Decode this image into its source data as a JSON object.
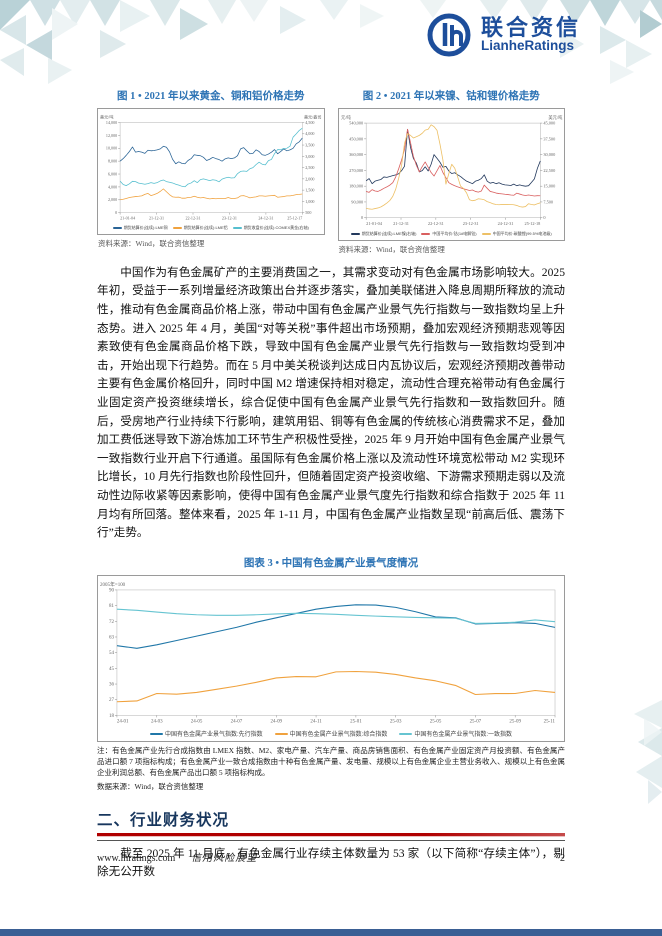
{
  "header": {
    "logo_cn": "联合资信",
    "logo_en": "LianheRatings"
  },
  "figures": {
    "fig1": {
      "title": "图 1 • 2021 年以来黄金、铜和铝价格走势",
      "source": "资料来源：Wind，联合资信整理"
    },
    "fig2": {
      "title": "图 2 • 2021 年以来镍、钴和锂价格走势",
      "source": "资料来源：Wind，联合资信整理"
    },
    "fig3": {
      "title": "图表 3 • 中国有色金属产业景气度情况",
      "note_lines": [
        "注：有色金属产业先行合成指数由 LMEX 指数、M2、家电产量、汽车产量、商品房销售面积、有色金属产业固定资产月投资额、有色金属产品进口额 7 项指标构成；有色金属产业一致合成指数由十种有色金属产量、发电量、规模以上有色金属企业主营业务收入、规模以上有色金属企业利润总额、有色金属产品出口额 5 项指标构成。",
        "数据来源：Wind，联合资信整理"
      ]
    }
  },
  "body": {
    "para1": "中国作为有色金属矿产的主要消费国之一，其需求变动对有色金属市场影响较大。2025 年初，受益于一系列增量经济政策出台并逐步落实，叠加美联储进入降息周期所释放的流动性，推动有色金属商品价格上涨，带动中国有色金属产业景气先行指数与一致指数均呈上升态势。进入 2025 年 4 月，美国“对等关税”事件超出市场预期，叠加宏观经济预期悲观等因素致使有色金属商品价格下跌，导致中国有色金属产业景气先行指数与一致指数均受到冲击，开始出现下行趋势。而在 5 月中美关税谈判达成日内瓦协议后，宏观经济预期改善带动主要有色金属价格回升，同时中国 M2 增速保持相对稳定，流动性合理充裕带动有色金属行业固定资产投资继续增长，综合促使中国有色金属产业景气先行指数和一致指数回升。随后，受房地产行业持续下行影响，建筑用铝、铜等有色金属的传统核心消费需求不足，叠加加工费低迷导致下游冶炼加工环节生产积极性受挫，2025 年 9 月开始中国有色金属产业景气一致指数行业开启下行通道。虽国际有色金属价格上涨以及流动性环境宽松带动 M2 实现环比增长，10 月先行指数也阶段性回升，但随着固定资产投资收缩、下游需求预期走弱以及流动性边际收紧等因素影响，使得中国有色金属产业景气度先行指数和综合指数于 2025 年 11 月均有所回落。整体来看，2025 年 1-11 月，中国有色金属产业指数呈现“前高后低、震荡下行”走势。",
    "section2_heading": "二、行业财务状况",
    "para2": "截至 2025 年 11 月底，有色金属行业存续主体数量为 53 家（以下简称“存续主体”），剔除无公开数"
  },
  "footer": {
    "site": "www.lhratings.com",
    "doc_title": "信用风险展望",
    "page": "2"
  },
  "colors": {
    "title_blue": "#2e74b5",
    "heading_blue": "#17365d",
    "logo_blue": "#1d4e9b",
    "rule_red": "#b00000",
    "bottom_bar_blue": "#3a5f94",
    "copper_line": "#2a6496",
    "aluminum_line": "#f0a23e",
    "gold_line": "#56bfcf",
    "nickel_line": "#23395d",
    "cobalt_line": "#d95f5f",
    "lithium_line": "#edc066",
    "leading_line": "#2077a8",
    "composite_line": "#f0a23e",
    "coincident_line": "#66c4d1"
  },
  "chart_data": [
    {
      "id": "chart1",
      "type": "line",
      "title": "图 1 • 2021 年以来黄金、铜和铝价格走势",
      "unit_left": "美元/吨",
      "unit_right": "美元/盎司",
      "grid": false,
      "legend_position": "bottom",
      "x_ticks": [
        "21-01-04",
        "21-12-31",
        "22-12-31",
        "23-12-31",
        "24-12-31",
        "25-12-17"
      ],
      "left_axis": {
        "min": 0,
        "max": 14000,
        "ticks": [
          "0",
          "2,000",
          "4,000",
          "6,000",
          "8,000",
          "10,000",
          "12,000",
          "14,000"
        ]
      },
      "right_axis": {
        "min": 500,
        "max": 4500,
        "ticks": [
          "500",
          "1,000",
          "1,500",
          "2,000",
          "2,500",
          "3,000",
          "3,500",
          "4,000",
          "4,500"
        ]
      },
      "series": [
        {
          "name": "期货结算价(连续):LME铜",
          "axis": "left",
          "color": "#2a6496",
          "values": [
            8000,
            8400,
            8900,
            9500,
            10200,
            9400,
            9500,
            9400,
            9200,
            9700,
            9600,
            9650,
            9750,
            9900,
            10300,
            10150,
            9450,
            8300,
            7600,
            7900,
            7650,
            7600,
            8100,
            8400,
            9000,
            8900,
            8850,
            8600,
            8100,
            8300,
            8600,
            8400,
            8250,
            8000,
            8350,
            8500,
            8400,
            8500,
            8850,
            9900,
            10100,
            9600,
            9150,
            9200,
            9750,
            9500,
            9000,
            8900,
            9100,
            9400,
            9800,
            9150,
            9500,
            9900,
            9600,
            9750,
            10000,
            10700,
            11000,
            11600
          ]
        },
        {
          "name": "期货结算价(连续):LME铝",
          "axis": "left",
          "color": "#f0a23e",
          "values": [
            2010,
            2080,
            2200,
            2350,
            2440,
            2500,
            2550,
            2610,
            2850,
            3000,
            2650,
            2800,
            3000,
            3300,
            3700,
            3250,
            2800,
            2450,
            2400,
            2420,
            2250,
            2250,
            2350,
            2400,
            2550,
            2400,
            2300,
            2350,
            2250,
            2150,
            2200,
            2160,
            2200,
            2210,
            2200,
            2350,
            2210,
            2200,
            2300,
            2600,
            2650,
            2500,
            2300,
            2400,
            2450,
            2600,
            2600,
            2550,
            2600,
            2650,
            2700,
            2400,
            2450,
            2500,
            2600,
            2600,
            2700,
            2800,
            2850,
            2900
          ]
        },
        {
          "name": "期货收盘价(连续):COMEX黄金(右轴)",
          "axis": "right",
          "color": "#56bfcf",
          "values": [
            1900,
            1750,
            1700,
            1780,
            1890,
            1880,
            1810,
            1790,
            1760,
            1790,
            1830,
            1800,
            1830,
            1910,
            1950,
            1880,
            1850,
            1820,
            1760,
            1720,
            1670,
            1650,
            1770,
            1820,
            1920,
            1830,
            1970,
            2000,
            1960,
            1920,
            1960,
            1940,
            1870,
            1990,
            2040,
            2070,
            2040,
            2050,
            2230,
            2330,
            2350,
            2330,
            2450,
            2500,
            2630,
            2740,
            2650,
            2620,
            2810,
            2860,
            3120,
            3300,
            3290,
            3350,
            3360,
            3450,
            3850,
            4000,
            4150,
            4250
          ]
        }
      ]
    },
    {
      "id": "chart2",
      "type": "line",
      "title": "图 2 • 2021 年以来镍、钴和锂价格走势",
      "unit_left": "元/吨",
      "unit_right": "美元/吨",
      "grid": false,
      "legend_position": "bottom",
      "x_ticks": [
        "21-01-04",
        "21-12-31",
        "22-12-31",
        "23-12-31",
        "24-12-31",
        "25-12-18"
      ],
      "left_axis": {
        "min": 0,
        "max": 540000,
        "ticks": [
          "0",
          "90,000",
          "180,000",
          "270,000",
          "360,000",
          "450,000",
          "540,000"
        ]
      },
      "right_axis": {
        "min": 0,
        "max": 45000,
        "ticks": [
          "0",
          "7,500",
          "15,000",
          "22,500",
          "30,000",
          "37,500",
          "45,000"
        ]
      },
      "series": [
        {
          "name": "期货结算价(连续):LME镍(右轴)",
          "axis": "right",
          "color": "#23395d",
          "values": [
            17500,
            18600,
            16200,
            17400,
            17800,
            18200,
            19400,
            19200,
            19600,
            20000,
            20400,
            20900,
            22400,
            24500,
            42000,
            33500,
            28200,
            26000,
            21800,
            22400,
            24200,
            22200,
            25400,
            30000,
            28200,
            26400,
            24000,
            24400,
            22200,
            21000,
            21400,
            20400,
            19600,
            18400,
            17400,
            16800,
            16200,
            17400,
            17800,
            18600,
            20400,
            17400,
            16400,
            16800,
            16200,
            16600,
            16000,
            15600,
            15500,
            15300,
            16000,
            15200,
            15600,
            15200,
            15000,
            15200,
            16800,
            18500,
            23500,
            27000
          ]
        },
        {
          "name": "中国平均价:钴(1#电解钴)",
          "axis": "left",
          "color": "#d95f5f",
          "values": [
            150000,
            145000,
            160000,
            152000,
            150000,
            158000,
            168000,
            176000,
            186000,
            200000,
            232000,
            280000,
            330000,
            390000,
            505000,
            430000,
            350000,
            300000,
            262000,
            292000,
            318000,
            288000,
            258000,
            238000,
            268000,
            298000,
            258000,
            228000,
            200000,
            190000,
            182000,
            176000,
            170000,
            165000,
            160000,
            155000,
            158000,
            150000,
            146000,
            152000,
            186000,
            168000,
            150000,
            146000,
            141000,
            138000,
            136000,
            134000,
            132000,
            130000,
            128000,
            140000,
            135000,
            130000,
            127000,
            130000,
            127000,
            124000,
            126000,
            125000
          ]
        },
        {
          "name": "中国平均价:碳酸锂(99.5%电池级)",
          "axis": "left",
          "color": "#edc066",
          "values": [
            54000,
            50000,
            48000,
            52000,
            56000,
            62000,
            72000,
            84000,
            98000,
            122000,
            162000,
            225000,
            300000,
            425000,
            480000,
            470000,
            455000,
            462000,
            470000,
            482000,
            500000,
            505000,
            530000,
            520000,
            498000,
            420000,
            330000,
            192000,
            252000,
            305000,
            282000,
            232000,
            180000,
            166000,
            142000,
            102000,
            97000,
            100000,
            108000,
            106000,
            102000,
            92000,
            86000,
            79000,
            75000,
            74000,
            76000,
            76000,
            76000,
            75000,
            74000,
            70000,
            63000,
            61000,
            64000,
            80000,
            75000,
            73000,
            80000,
            85000
          ]
        }
      ]
    },
    {
      "id": "chart3",
      "type": "line",
      "title": "图表 3 • 中国有色金属产业景气度情况",
      "unit_left": "2005年=100",
      "grid": false,
      "legend_position": "bottom",
      "x_ticks": [
        "24-01",
        "24-03",
        "24-05",
        "24-07",
        "24-09",
        "24-11",
        "25-01",
        "25-03",
        "25-05",
        "25-07",
        "25-09",
        "25-11"
      ],
      "left_axis": {
        "min": 18,
        "max": 90,
        "ticks": [
          "18",
          "27",
          "36",
          "45",
          "54",
          "63",
          "72",
          "81",
          "90"
        ]
      },
      "series": [
        {
          "name": "中国有色金属产业景气指数:先行指数",
          "axis": "left",
          "color": "#2077a8",
          "values": [
            58,
            56.5,
            58.5,
            61,
            63.5,
            66,
            68.5,
            71.5,
            74,
            76.5,
            79,
            80.5,
            81.5,
            81.3,
            80,
            77.5,
            74.5,
            74,
            70.5,
            70.8,
            71.2,
            70.8,
            68.5
          ]
        },
        {
          "name": "中国有色金属产业景气指数:综合指数",
          "axis": "left",
          "color": "#f0a23e",
          "values": [
            25.8,
            26.3,
            30.6,
            30.2,
            31.2,
            33,
            34.8,
            37,
            39.5,
            40.3,
            40.2,
            43,
            43.2,
            42.8,
            41.5,
            39.5,
            37.8,
            35.2,
            30,
            30.5,
            30.6,
            32.3,
            31.2
          ]
        },
        {
          "name": "中国有色金属产业景气指数:一致指数",
          "axis": "left",
          "color": "#66c4d1",
          "values": [
            79,
            78.3,
            77.3,
            76.4,
            75.8,
            75.4,
            75.4,
            75.8,
            76.2,
            76.6,
            76.4,
            76,
            75.4,
            75,
            74.6,
            74.2,
            74,
            73.8,
            70.8,
            71,
            71.5,
            72.8,
            71.8
          ]
        }
      ]
    }
  ]
}
